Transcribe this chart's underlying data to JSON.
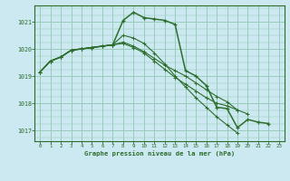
{
  "bg_color": "#cce8f0",
  "grid_color": "#99ccbb",
  "line_color": "#2d6e2d",
  "xlabel": "Graphe pression niveau de la mer (hPa)",
  "xlim": [
    -0.5,
    23.5
  ],
  "ylim": [
    1016.6,
    1021.6
  ],
  "yticks": [
    1017,
    1018,
    1019,
    1020,
    1021
  ],
  "xticks": [
    0,
    1,
    2,
    3,
    4,
    5,
    6,
    7,
    8,
    9,
    10,
    11,
    12,
    13,
    14,
    15,
    16,
    17,
    18,
    19,
    20,
    21,
    22,
    23
  ],
  "series": [
    [
      1019.15,
      1019.55,
      1019.7,
      1019.95,
      1020.0,
      1020.05,
      1020.1,
      1020.15,
      1021.05,
      1021.35,
      1021.15,
      1021.1,
      1021.05,
      1020.9,
      1019.2,
      1019.0,
      1018.65,
      1017.85,
      1017.8,
      1017.1,
      1017.4,
      1017.3,
      1017.25,
      null
    ],
    [
      1019.15,
      1019.55,
      1019.7,
      1019.95,
      1020.0,
      1020.05,
      1020.1,
      1020.15,
      1020.5,
      1020.4,
      1020.2,
      1019.85,
      1019.45,
      1019.0,
      1018.6,
      1018.2,
      1017.85,
      1017.5,
      1017.2,
      1016.9,
      null,
      null,
      null,
      null
    ],
    [
      1019.15,
      1019.55,
      1019.7,
      1019.95,
      1020.0,
      1020.05,
      1020.1,
      1020.15,
      1020.25,
      1020.1,
      1019.9,
      1019.65,
      1019.4,
      1019.2,
      1019.0,
      1018.75,
      1018.5,
      1018.25,
      1018.05,
      1017.75,
      null,
      null,
      null,
      null
    ],
    [
      1019.15,
      1019.55,
      1019.7,
      1019.95,
      1020.0,
      1020.05,
      1020.1,
      1020.15,
      1020.2,
      1020.05,
      1019.85,
      1019.55,
      1019.25,
      1018.95,
      1018.7,
      1018.45,
      1018.2,
      1018.0,
      1017.9,
      1017.75,
      1017.6,
      null,
      null,
      null
    ]
  ]
}
